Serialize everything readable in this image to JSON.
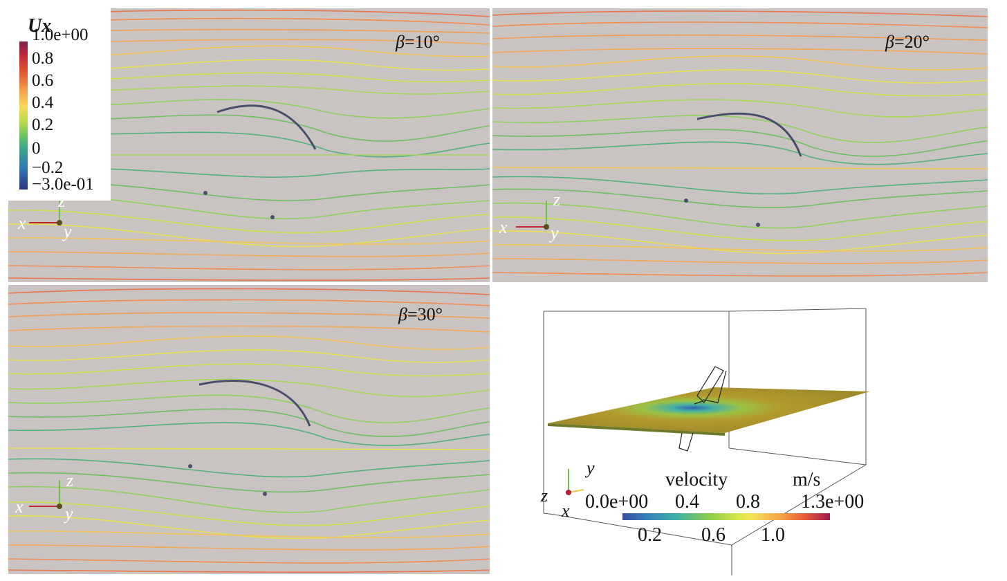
{
  "panels": [
    {
      "id": "beta-10",
      "label_symbol": "β",
      "label_value": "=10°"
    },
    {
      "id": "beta-20",
      "label_symbol": "β",
      "label_value": "=20°"
    },
    {
      "id": "beta-30",
      "label_symbol": "β",
      "label_value": "=30°"
    }
  ],
  "axes_labels": {
    "x": "x",
    "y": "y",
    "z": "z"
  },
  "ux_legend": {
    "title": "Ux",
    "ticks": [
      "1.0e+00",
      "0.8",
      "0.6",
      "0.4",
      "0.2",
      "0",
      "−0.2",
      "−3.0e-01"
    ],
    "colors": [
      "#7f1e4f",
      "#e65b31",
      "#f7d95a",
      "#6fc55b",
      "#3474b4",
      "#28367f"
    ]
  },
  "inset": {
    "colorbar_title": "velocity",
    "unit": "m/s",
    "top_ticks": [
      "0.0e+00",
      "0.4",
      "0.8",
      "1.3e+00"
    ],
    "bottom_ticks": [
      "0.2",
      "0.6",
      "1.0"
    ],
    "axes": {
      "y": "y",
      "z": "z",
      "x": "x"
    }
  }
}
